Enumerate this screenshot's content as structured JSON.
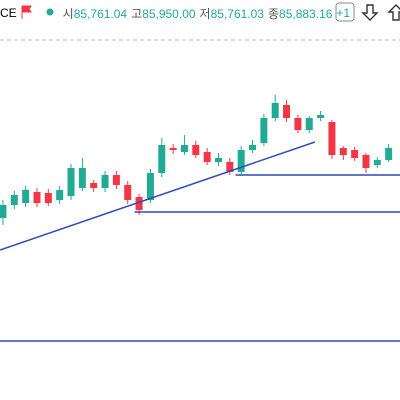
{
  "header": {
    "symbol": "CE",
    "fields": [
      {
        "label": "시",
        "value": "85,761.04"
      },
      {
        "label": "고",
        "value": "85,950.00"
      },
      {
        "label": "저",
        "value": "85,761.03"
      },
      {
        "label": "종",
        "value": "85,883.16"
      }
    ],
    "change": "+1"
  },
  "chart_data": {
    "type": "candlestick",
    "open": [
      85510,
      85575,
      85585,
      85640,
      85635,
      85600,
      85620,
      85660,
      85685,
      85660,
      85725,
      85675,
      85615,
      85600,
      85735,
      85860,
      85840,
      85875,
      85840,
      85790,
      85790,
      85740,
      85850,
      85885,
      86010,
      86075,
      86010,
      85950,
      86010,
      85990,
      85860,
      85850,
      85825,
      85775,
      85800
    ],
    "high": [
      85600,
      85645,
      85670,
      85660,
      85655,
      85670,
      85780,
      85810,
      85700,
      85745,
      85745,
      85695,
      85630,
      85755,
      85910,
      85880,
      85925,
      85895,
      85860,
      85835,
      85810,
      85870,
      85900,
      86030,
      86125,
      86100,
      86025,
      86020,
      86045,
      86000,
      85870,
      85865,
      85835,
      85815,
      85880
    ],
    "low": [
      85475,
      85555,
      85565,
      85565,
      85570,
      85580,
      85600,
      85645,
      85640,
      85640,
      85655,
      85580,
      85525,
      85585,
      85715,
      85830,
      85825,
      85810,
      85775,
      85770,
      85725,
      85725,
      85835,
      85870,
      85995,
      85990,
      85935,
      85935,
      85995,
      85805,
      85800,
      85795,
      85735,
      85760,
      85790
    ],
    "close": [
      85575,
      85625,
      85650,
      85585,
      85585,
      85650,
      85760,
      85760,
      85660,
      85725,
      85675,
      85600,
      85550,
      85735,
      85875,
      85850,
      85875,
      85825,
      85790,
      85810,
      85740,
      85850,
      85875,
      86010,
      86085,
      86010,
      85950,
      86010,
      86025,
      85825,
      85825,
      85810,
      85760,
      85800,
      85860
    ],
    "up_color": "#22ab94",
    "down_color": "#f23645",
    "line_color": "#2e4bbf",
    "xlim": [
      -0.26,
      35
    ],
    "ylim": [
      84600,
      86400
    ],
    "lines": [
      {
        "kind": "horizontal",
        "start": 20.5,
        "value": 85725
      },
      {
        "kind": "horizontal",
        "start": 11.6,
        "value": 85540
      },
      {
        "kind": "horizontal",
        "start": -0.26,
        "value": 84895
      },
      {
        "kind": "trend",
        "x": [
          -0.26,
          27.5
        ],
        "y": [
          85350,
          85890
        ]
      }
    ]
  }
}
